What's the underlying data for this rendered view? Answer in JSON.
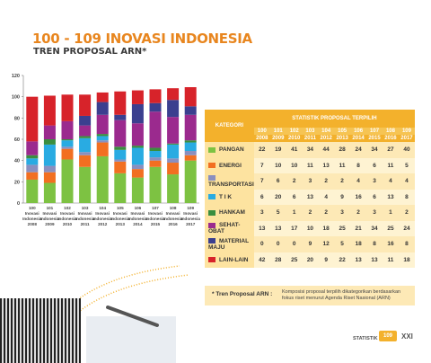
{
  "page": {
    "title": "100 - 109 INOVASI INDONESIA",
    "subtitle": "TREN PROPOSAL ARN*"
  },
  "chart_data": {
    "type": "bar",
    "stacked": true,
    "title": "",
    "xlabel": "",
    "ylabel": "",
    "ylim": [
      0,
      120
    ],
    "yticks": [
      0,
      20,
      40,
      60,
      80,
      100,
      120
    ],
    "grid": false,
    "legend": "none",
    "categories": [
      "100 Inovasi Indonesia 2008",
      "101 Inovasi Indonesia 2009",
      "102 Inovasi Indonesia 2010",
      "103 Inovasi Indonesia 2011",
      "104 Inovasi Indonesia 2012",
      "105 Inovasi Indonesia 2013",
      "106 Inovasi Indonesia 2014",
      "107 Inovasi Indonesia 2015",
      "108 Inovasi Indonesia 2016",
      "109 Inovasi Indonesia 2017"
    ],
    "category_lines": [
      [
        "100",
        "Inovasi",
        "Indonesia",
        "2008"
      ],
      [
        "101",
        "Inovasi",
        "Indonesia",
        "2009"
      ],
      [
        "102",
        "Inovasi",
        "Indonesia",
        "2010"
      ],
      [
        "103",
        "Inovasi",
        "Indonesia",
        "2011"
      ],
      [
        "104",
        "Inovasi",
        "Indonesia",
        "2012"
      ],
      [
        "105",
        "Inovasi",
        "Indonesia",
        "2013"
      ],
      [
        "106",
        "Inovasi",
        "Indonesia",
        "2014"
      ],
      [
        "107",
        "Inovasi",
        "Indonesia",
        "2015"
      ],
      [
        "108",
        "Inovasi",
        "Indonesia",
        "2016"
      ],
      [
        "109",
        "Inovasi",
        "Indonesia",
        "2017"
      ]
    ],
    "series": [
      {
        "name": "PANGAN",
        "color": "#7dc242",
        "values": [
          22,
          19,
          41,
          34,
          44,
          28,
          24,
          34,
          27,
          40
        ]
      },
      {
        "name": "ENERGI",
        "color": "#f26f21",
        "values": [
          7,
          10,
          10,
          11,
          13,
          11,
          8,
          6,
          11,
          5
        ]
      },
      {
        "name": "TRANSPORTASI",
        "color": "#8a8fbf",
        "values": [
          7,
          6,
          2,
          3,
          2,
          2,
          4,
          3,
          4,
          4
        ]
      },
      {
        "name": "T I K",
        "color": "#29abe2",
        "values": [
          6,
          20,
          6,
          13,
          4,
          9,
          16,
          6,
          13,
          8
        ]
      },
      {
        "name": "HANKAM",
        "color": "#3a8e3f",
        "values": [
          3,
          5,
          1,
          2,
          2,
          3,
          2,
          3,
          1,
          2
        ]
      },
      {
        "name": "SEHAT-OBAT",
        "color": "#9b2a8e",
        "values": [
          13,
          13,
          17,
          10,
          18,
          25,
          21,
          34,
          25,
          24
        ]
      },
      {
        "name": "MATERIAL MAJU",
        "color": "#3b3f8f",
        "values": [
          0,
          0,
          0,
          9,
          12,
          5,
          18,
          8,
          16,
          8
        ]
      },
      {
        "name": "LAIN-LAIN",
        "color": "#d7232a",
        "values": [
          42,
          28,
          25,
          20,
          9,
          22,
          13,
          13,
          11,
          18
        ]
      }
    ]
  },
  "table": {
    "kategori_label": "KATEGORI",
    "header": "STATISTIK PROPOSAL TERPILIH",
    "codes": [
      "100",
      "101",
      "102",
      "103",
      "104",
      "105",
      "106",
      "107",
      "108",
      "109"
    ],
    "years": [
      "2008",
      "2009",
      "2010",
      "2011",
      "2012",
      "2013",
      "2014",
      "2015",
      "2016",
      "2017"
    ]
  },
  "note": {
    "label": "* Tren Proposal ARN :",
    "text": "Komposisi proposal terpilih dikategorikan berdasarkan fokus riset menurut Agenda Riset Nasional (ARN)"
  },
  "footer": {
    "label": "STATISTIK",
    "logo": "109",
    "page": "XXI"
  }
}
